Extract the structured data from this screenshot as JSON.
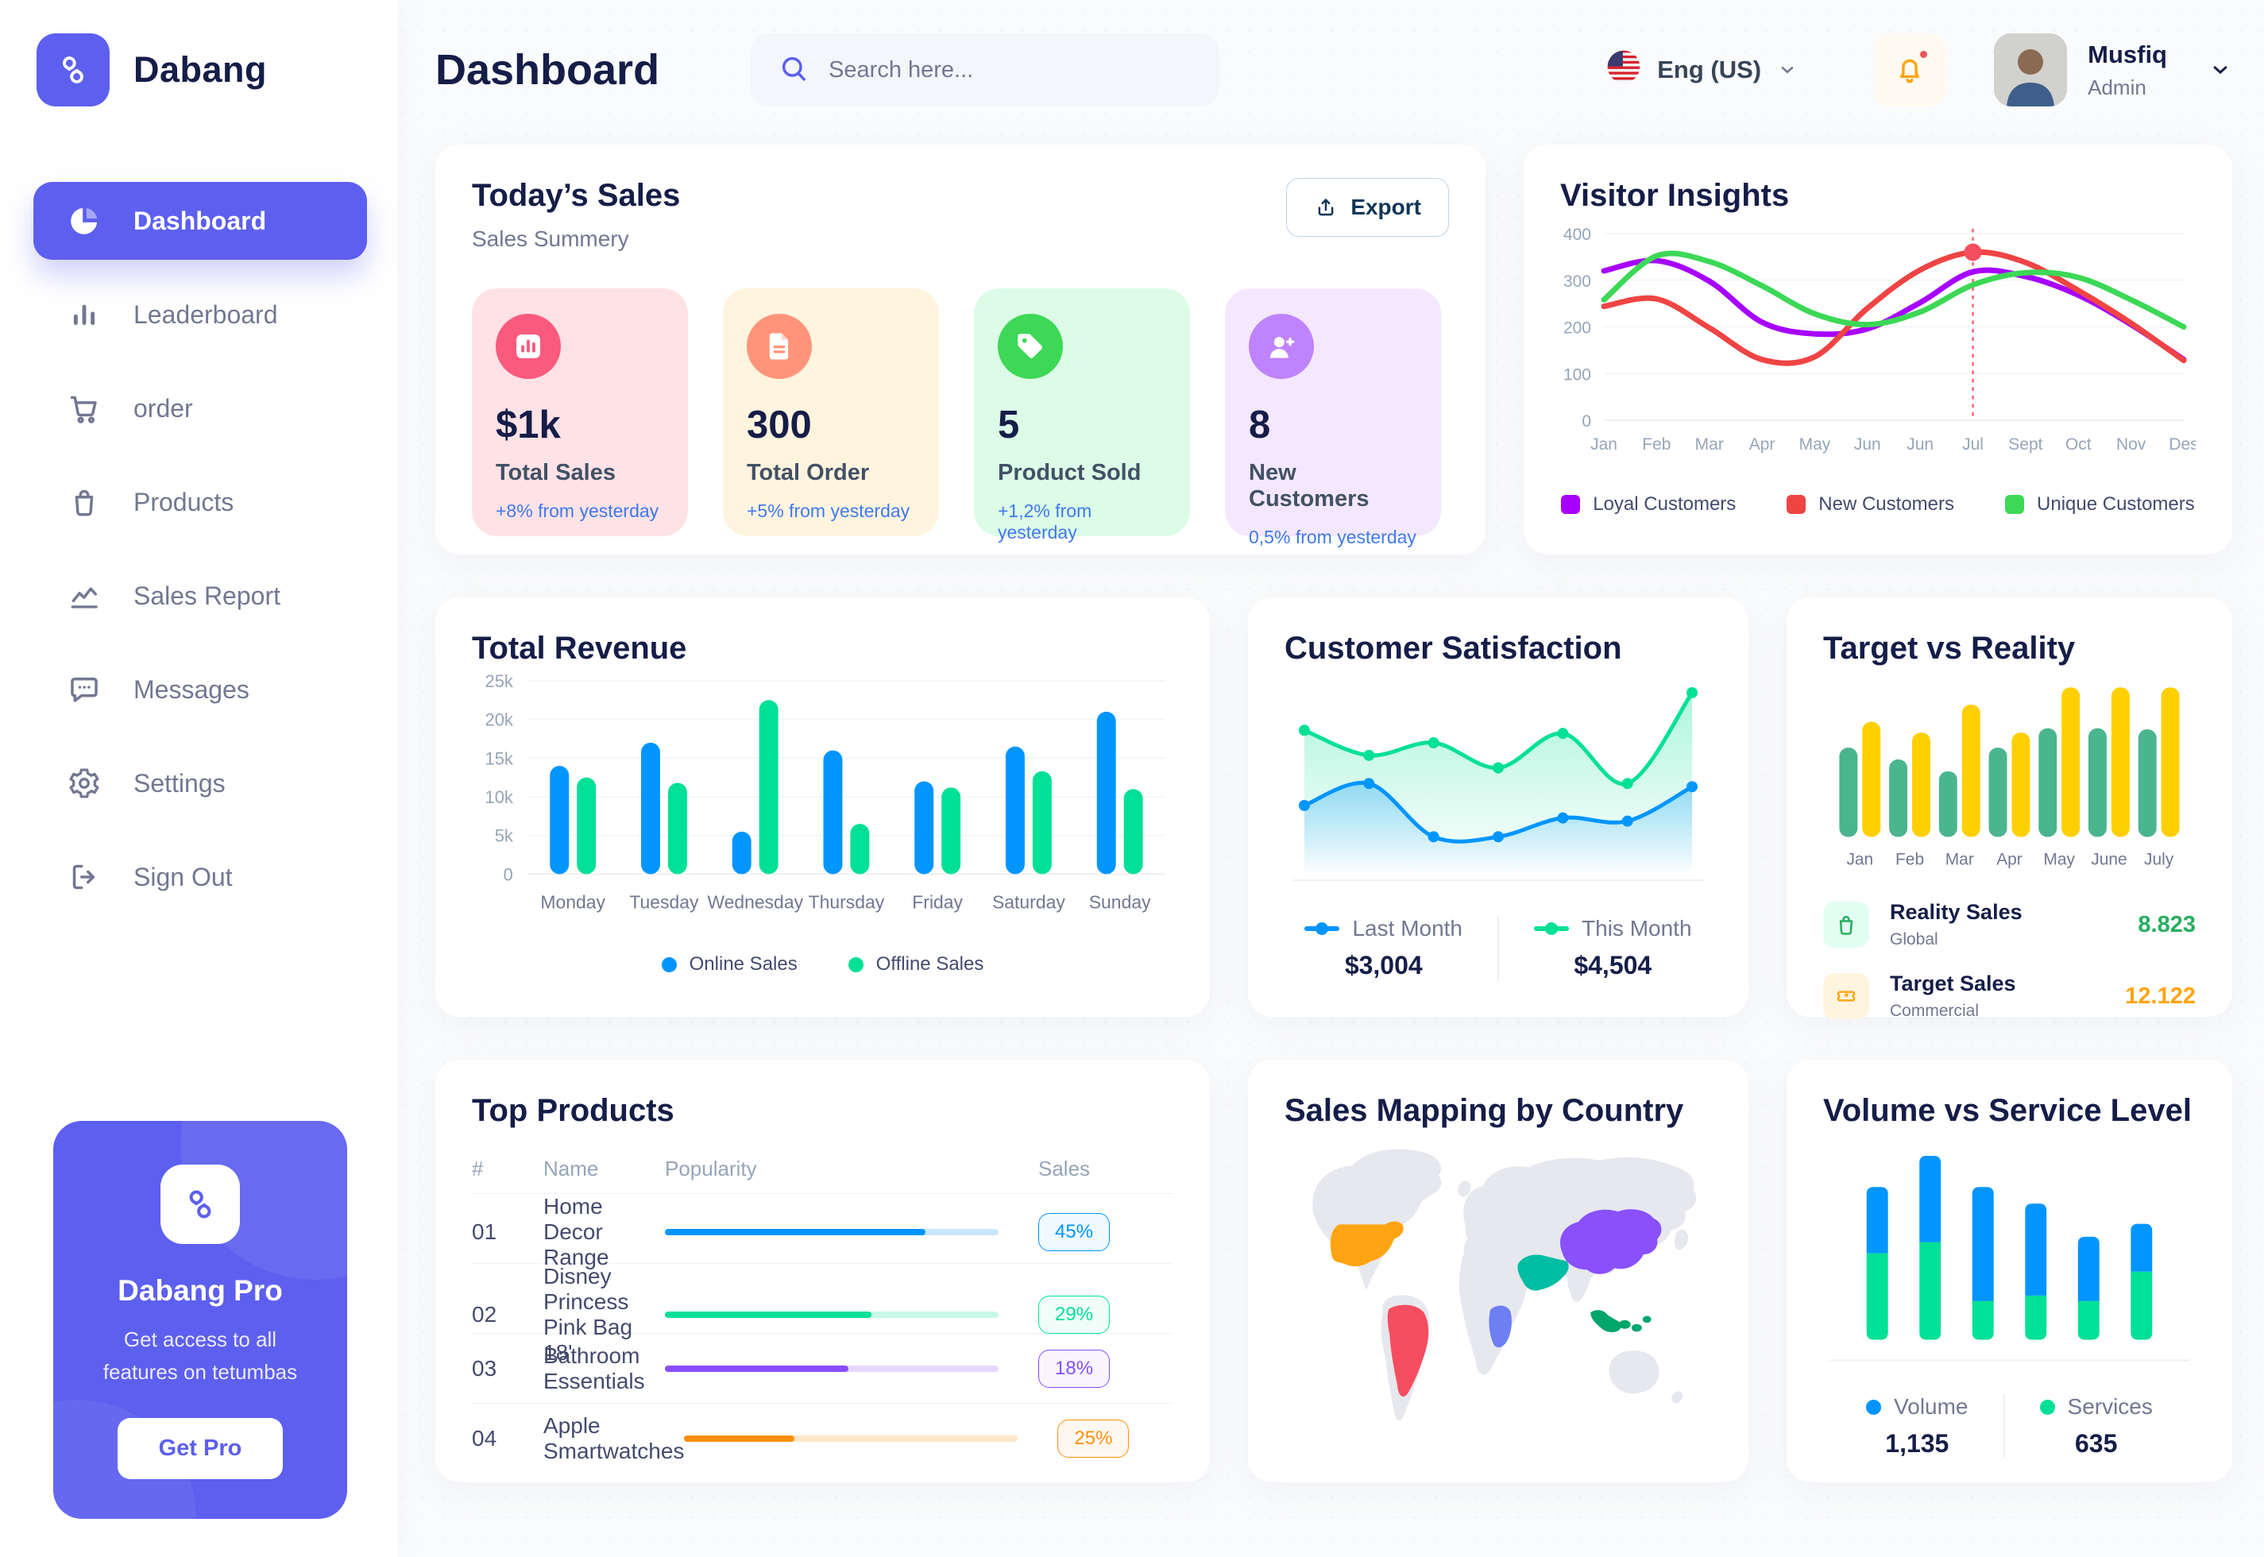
{
  "app": {
    "brand": "Dabang"
  },
  "header": {
    "title": "Dashboard",
    "search_placeholder": "Search here...",
    "language": "Eng (US)",
    "user": {
      "name": "Musfiq",
      "role": "Admin"
    }
  },
  "sidebar": {
    "items": [
      {
        "label": "Dashboard",
        "icon": "dashboard",
        "active": true
      },
      {
        "label": "Leaderboard",
        "icon": "leaderboard",
        "active": false
      },
      {
        "label": "order",
        "icon": "cart",
        "active": false
      },
      {
        "label": "Products",
        "icon": "bag",
        "active": false
      },
      {
        "label": "Sales Report",
        "icon": "chart",
        "active": false
      },
      {
        "label": "Messages",
        "icon": "message",
        "active": false
      },
      {
        "label": "Settings",
        "icon": "gear",
        "active": false
      },
      {
        "label": "Sign Out",
        "icon": "signout",
        "active": false
      }
    ],
    "pro": {
      "title": "Dabang Pro",
      "description": "Get access to all features on tetumbas",
      "cta": "Get Pro"
    }
  },
  "today_sales": {
    "title": "Today’s Sales",
    "subtitle": "Sales Summery",
    "export_label": "Export",
    "cards": [
      {
        "value": "$1k",
        "label": "Total Sales",
        "delta": "+8% from yesterday",
        "bg": "#FFE2E5",
        "icon_bg": "#FA5A7D",
        "icon": "stat-bars"
      },
      {
        "value": "300",
        "label": "Total Order",
        "delta": "+5% from yesterday",
        "bg": "#FFF4DE",
        "icon_bg": "#FF947A",
        "icon": "stat-file"
      },
      {
        "value": "5",
        "label": "Product Sold",
        "delta": "+1,2% from yesterday",
        "bg": "#DCFCE7",
        "icon_bg": "#3CD856",
        "icon": "stat-tag"
      },
      {
        "value": "8",
        "label": "New Customers",
        "delta": "0,5% from yesterday",
        "bg": "#F3E8FF",
        "icon_bg": "#BF83FF",
        "icon": "stat-user"
      }
    ]
  },
  "chart_data": [
    {
      "id": "visitor_insights",
      "type": "line",
      "title": "Visitor Insights",
      "x": [
        "Jan",
        "Feb",
        "Mar",
        "Apr",
        "May",
        "Jun",
        "Jun",
        "Jul",
        "Sept",
        "Oct",
        "Nov",
        "Des"
      ],
      "y_ticks": [
        0,
        100,
        200,
        300,
        400
      ],
      "ylim": [
        0,
        400
      ],
      "marker_index": 7,
      "grid": true,
      "legend_position": "bottom",
      "series": [
        {
          "name": "Loyal Customers",
          "color": "#A700FF",
          "values": [
            320,
            342,
            298,
            210,
            185,
            196,
            252,
            318,
            308,
            268,
            205,
            130
          ]
        },
        {
          "name": "New Customers",
          "color": "#EF4444",
          "values": [
            244,
            260,
            198,
            130,
            136,
            240,
            322,
            360,
            338,
            278,
            208,
            128
          ]
        },
        {
          "name": "Unique Customers",
          "color": "#3CD856",
          "values": [
            258,
            352,
            340,
            288,
            228,
            205,
            232,
            290,
            316,
            306,
            258,
            200
          ]
        }
      ]
    },
    {
      "id": "total_revenue",
      "type": "bar",
      "title": "Total Revenue",
      "categories": [
        "Monday",
        "Tuesday",
        "Wednesday",
        "Thursday",
        "Friday",
        "Saturday",
        "Sunday"
      ],
      "y_ticks": [
        0,
        5000,
        10000,
        15000,
        20000,
        25000
      ],
      "ylim": [
        0,
        25000
      ],
      "grid": true,
      "legend_position": "bottom",
      "series": [
        {
          "name": "Online Sales",
          "color": "#0095FF",
          "values": [
            14000,
            17000,
            5500,
            16000,
            12000,
            16500,
            21000
          ]
        },
        {
          "name": "Offline Sales",
          "color": "#00E096",
          "values": [
            12500,
            11800,
            22500,
            6500,
            11200,
            13300,
            11000
          ]
        }
      ]
    },
    {
      "id": "customer_satisfaction",
      "type": "area",
      "title": "Customer Satisfaction",
      "legend_position": "bottom",
      "series": [
        {
          "name": "Last Month",
          "color": "#0095FF",
          "total": "$3,004",
          "values": [
            3000,
            3350,
            2500,
            2500,
            2800,
            2750,
            3300
          ]
        },
        {
          "name": "This Month",
          "color": "#00E096",
          "total": "$4,504",
          "values": [
            4200,
            3800,
            4000,
            3600,
            4150,
            3350,
            4800
          ]
        }
      ]
    },
    {
      "id": "target_vs_reality",
      "type": "bar",
      "title": "Target vs Reality",
      "categories": [
        "Jan",
        "Feb",
        "Mar",
        "Apr",
        "May",
        "June",
        "July"
      ],
      "ylim": [
        0,
        14
      ],
      "legend_position": "bottom",
      "series": [
        {
          "name": "Reality Sales",
          "subtitle": "Global",
          "color": "#4AB58E",
          "value_label": "8.823",
          "value_color": "#27AE60",
          "tile_bg": "#E2FFF3",
          "icon": "bag",
          "values": [
            8.3,
            7.2,
            6.1,
            8.3,
            10.1,
            10.1,
            10.0
          ]
        },
        {
          "name": "Target Sales",
          "subtitle": "Commercial",
          "color": "#FFCF00",
          "value_label": "12.122",
          "value_color": "#FFA412",
          "tile_bg": "#FFF4DE",
          "icon": "ticket",
          "values": [
            10.7,
            9.7,
            12.3,
            9.7,
            13.9,
            13.9,
            13.9
          ]
        }
      ]
    },
    {
      "id": "volume_service",
      "type": "stacked-bar",
      "title": "Volume vs Service Level",
      "legend_position": "bottom",
      "series": [
        {
          "name": "Volume",
          "color": "#0095FF",
          "total": "1,135",
          "values": [
            36,
            47,
            62,
            50,
            35,
            26
          ]
        },
        {
          "name": "Services",
          "color": "#00E096",
          "total": "635",
          "values": [
            47,
            53,
            21,
            24,
            21,
            37
          ]
        }
      ]
    }
  ],
  "top_products": {
    "title": "Top Products",
    "headers": [
      "#",
      "Name",
      "Popularity",
      "Sales"
    ],
    "rows": [
      {
        "num": "01",
        "name": "Home Decor Range",
        "popularity": 78,
        "sales": "45%",
        "color": "#0095FF"
      },
      {
        "num": "02",
        "name": "Disney Princess Pink Bag 18'",
        "popularity": 62,
        "sales": "29%",
        "color": "#00E096"
      },
      {
        "num": "03",
        "name": "Bathroom Essentials",
        "popularity": 55,
        "sales": "18%",
        "color": "#884DFF"
      },
      {
        "num": "04",
        "name": "Apple Smartwatches",
        "popularity": 33,
        "sales": "25%",
        "color": "#FF8F0D"
      }
    ]
  },
  "sales_map": {
    "title": "Sales Mapping by Country",
    "countries": [
      {
        "name": "United States",
        "color": "#FFA412"
      },
      {
        "name": "Brazil",
        "color": "#F64E60"
      },
      {
        "name": "Saudi Arabia",
        "color": "#00BDA3"
      },
      {
        "name": "DR Congo",
        "color": "#6E7FF3"
      },
      {
        "name": "China",
        "color": "#8950FC"
      },
      {
        "name": "Indonesia",
        "color": "#00A66C"
      }
    ]
  },
  "colors": {
    "accent": "#5D5FEF",
    "title": "#151D48",
    "muted": "#737791",
    "land": "#E6E8EE"
  }
}
